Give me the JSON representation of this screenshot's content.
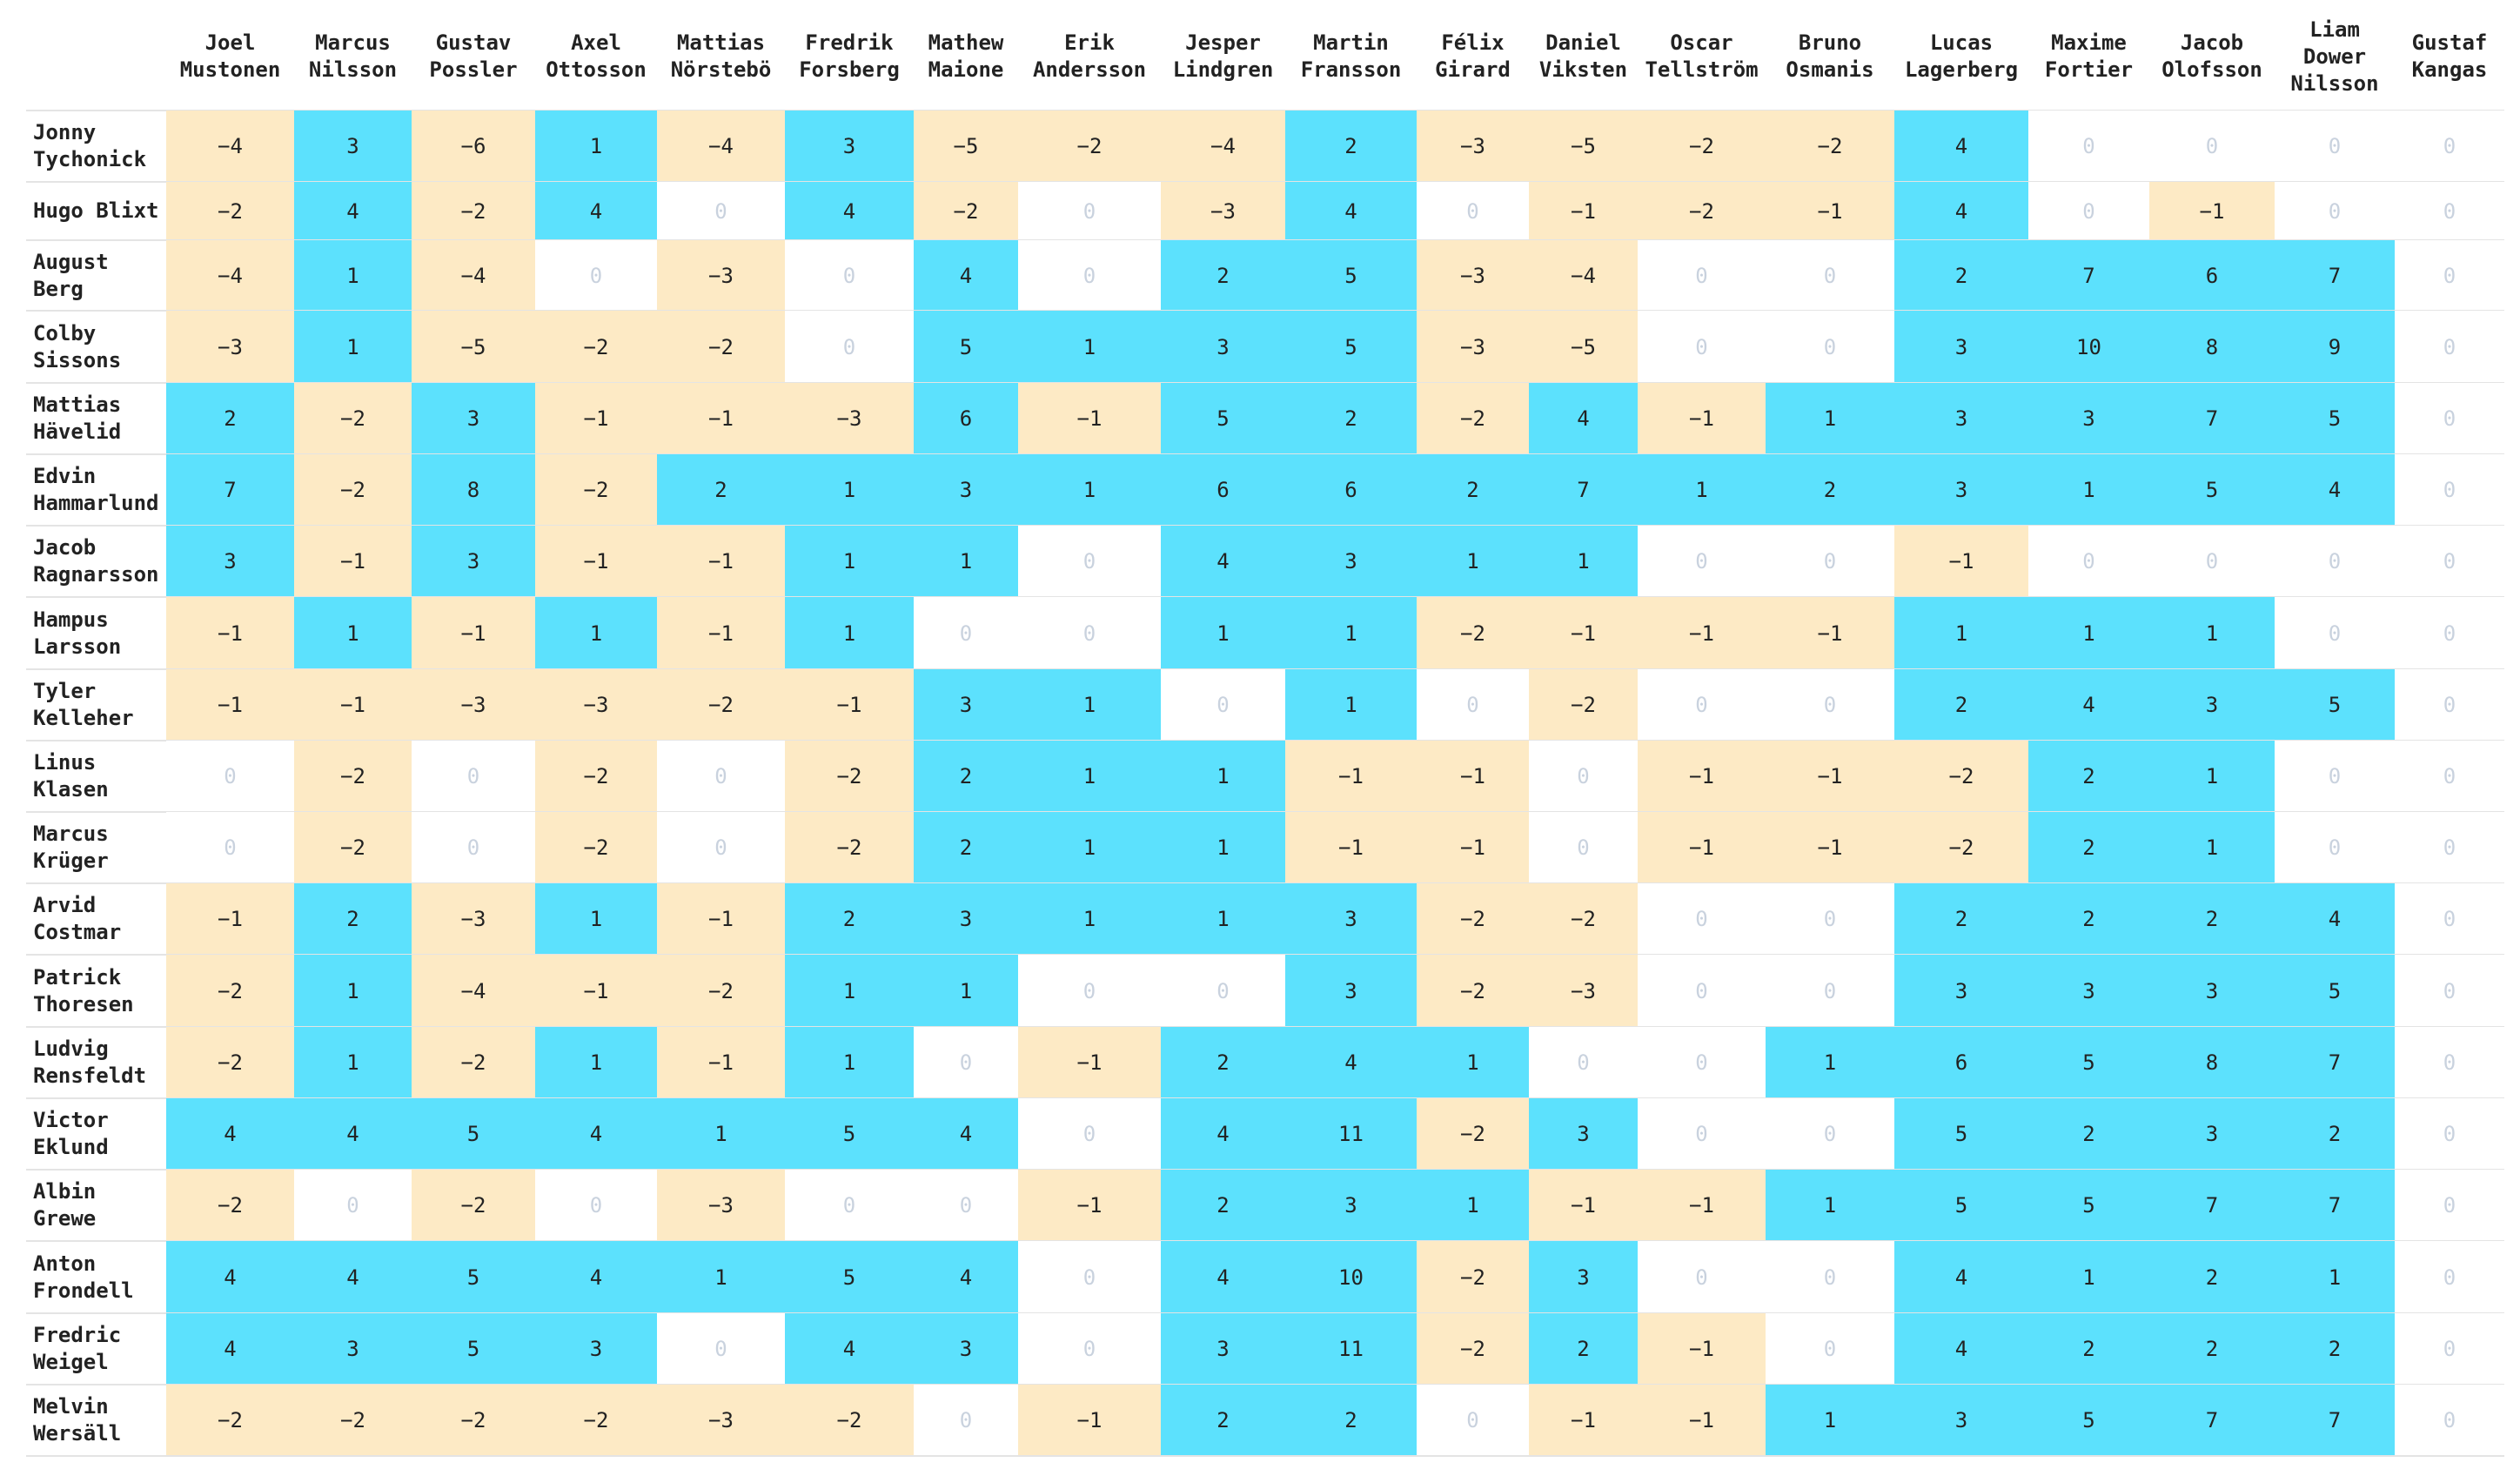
{
  "colors": {
    "positive": "#5ce1fd",
    "negative": "#fdeac5",
    "zero": "#ffffff",
    "zero_text": "#c9d2de"
  },
  "chart_data": {
    "type": "heatmap",
    "columns": [
      "Joel\nMustonen",
      "Marcus\nNilsson",
      "Gustav\nPossler",
      "Axel\nOttosson",
      "Mattias\nNörstebö",
      "Fredrik\nForsberg",
      "Mathew\nMaione",
      "Erik\nAndersson",
      "Jesper\nLindgren",
      "Martin\nFransson",
      "Félix\nGirard",
      "Daniel\nViksten",
      "Oscar\nTellström",
      "Bruno\nOsmanis",
      "Lucas\nLagerberg",
      "Maxime\nFortier",
      "Jacob\nOlofsson",
      "Liam\nDower\nNilsson",
      "Gustaf\nKangas"
    ],
    "rows": [
      "Jonny\nTychonick",
      "Hugo Blixt",
      "August\nBerg",
      "Colby\nSissons",
      "Mattias\nHävelid",
      "Edvin\nHammarlund",
      "Jacob\nRagnarsson",
      "Hampus\nLarsson",
      "Tyler\nKelleher",
      "Linus\nKlasen",
      "Marcus\nKrüger",
      "Arvid\nCostmar",
      "Patrick\nThoresen",
      "Ludvig\nRensfeldt",
      "Victor\nEklund",
      "Albin\nGrewe",
      "Anton\nFrondell",
      "Fredric\nWeigel",
      "Melvin\nWersäll"
    ],
    "values": [
      [
        -4,
        3,
        -6,
        1,
        -4,
        3,
        -5,
        -2,
        -4,
        2,
        -3,
        -5,
        -2,
        -2,
        4,
        0,
        0,
        0,
        0
      ],
      [
        -2,
        4,
        -2,
        4,
        0,
        4,
        -2,
        0,
        -3,
        4,
        0,
        -1,
        -2,
        -1,
        4,
        0,
        -1,
        0,
        0
      ],
      [
        -4,
        1,
        -4,
        0,
        -3,
        0,
        4,
        0,
        2,
        5,
        -3,
        -4,
        0,
        0,
        2,
        7,
        6,
        7,
        0
      ],
      [
        -3,
        1,
        -5,
        -2,
        -2,
        0,
        5,
        1,
        3,
        5,
        -3,
        -5,
        0,
        0,
        3,
        10,
        8,
        9,
        0
      ],
      [
        2,
        -2,
        3,
        -1,
        -1,
        -3,
        6,
        -1,
        5,
        2,
        -2,
        4,
        -1,
        1,
        3,
        3,
        7,
        5,
        0
      ],
      [
        7,
        -2,
        8,
        -2,
        2,
        1,
        3,
        1,
        6,
        6,
        2,
        7,
        1,
        2,
        3,
        1,
        5,
        4,
        0
      ],
      [
        3,
        -1,
        3,
        -1,
        -1,
        1,
        1,
        0,
        4,
        3,
        1,
        1,
        0,
        0,
        -1,
        0,
        0,
        0,
        0
      ],
      [
        -1,
        1,
        -1,
        1,
        -1,
        1,
        0,
        0,
        1,
        1,
        -2,
        -1,
        -1,
        -1,
        1,
        1,
        1,
        0,
        0
      ],
      [
        -1,
        -1,
        -3,
        -3,
        -2,
        -1,
        3,
        1,
        0,
        1,
        0,
        -2,
        0,
        0,
        2,
        4,
        3,
        5,
        0
      ],
      [
        0,
        -2,
        0,
        -2,
        0,
        -2,
        2,
        1,
        1,
        -1,
        -1,
        0,
        -1,
        -1,
        -2,
        2,
        1,
        0,
        0
      ],
      [
        0,
        -2,
        0,
        -2,
        0,
        -2,
        2,
        1,
        1,
        -1,
        -1,
        0,
        -1,
        -1,
        -2,
        2,
        1,
        0,
        0
      ],
      [
        -1,
        2,
        -3,
        1,
        -1,
        2,
        3,
        1,
        1,
        3,
        -2,
        -2,
        0,
        0,
        2,
        2,
        2,
        4,
        0
      ],
      [
        -2,
        1,
        -4,
        -1,
        -2,
        1,
        1,
        0,
        0,
        3,
        -2,
        -3,
        0,
        0,
        3,
        3,
        3,
        5,
        0
      ],
      [
        -2,
        1,
        -2,
        1,
        -1,
        1,
        0,
        -1,
        2,
        4,
        1,
        0,
        0,
        1,
        6,
        5,
        8,
        7,
        0
      ],
      [
        4,
        4,
        5,
        4,
        1,
        5,
        4,
        0,
        4,
        11,
        -2,
        3,
        0,
        0,
        5,
        2,
        3,
        2,
        0
      ],
      [
        -2,
        0,
        -2,
        0,
        -3,
        0,
        0,
        -1,
        2,
        3,
        1,
        -1,
        -1,
        1,
        5,
        5,
        7,
        7,
        0
      ],
      [
        4,
        4,
        5,
        4,
        1,
        5,
        4,
        0,
        4,
        10,
        -2,
        3,
        0,
        0,
        4,
        1,
        2,
        1,
        0
      ],
      [
        4,
        3,
        5,
        3,
        0,
        4,
        3,
        0,
        3,
        11,
        -2,
        2,
        -1,
        0,
        4,
        2,
        2,
        2,
        0
      ],
      [
        -2,
        -2,
        -2,
        -2,
        -3,
        -2,
        0,
        -1,
        2,
        2,
        0,
        -1,
        -1,
        1,
        3,
        5,
        7,
        7,
        0
      ]
    ]
  }
}
